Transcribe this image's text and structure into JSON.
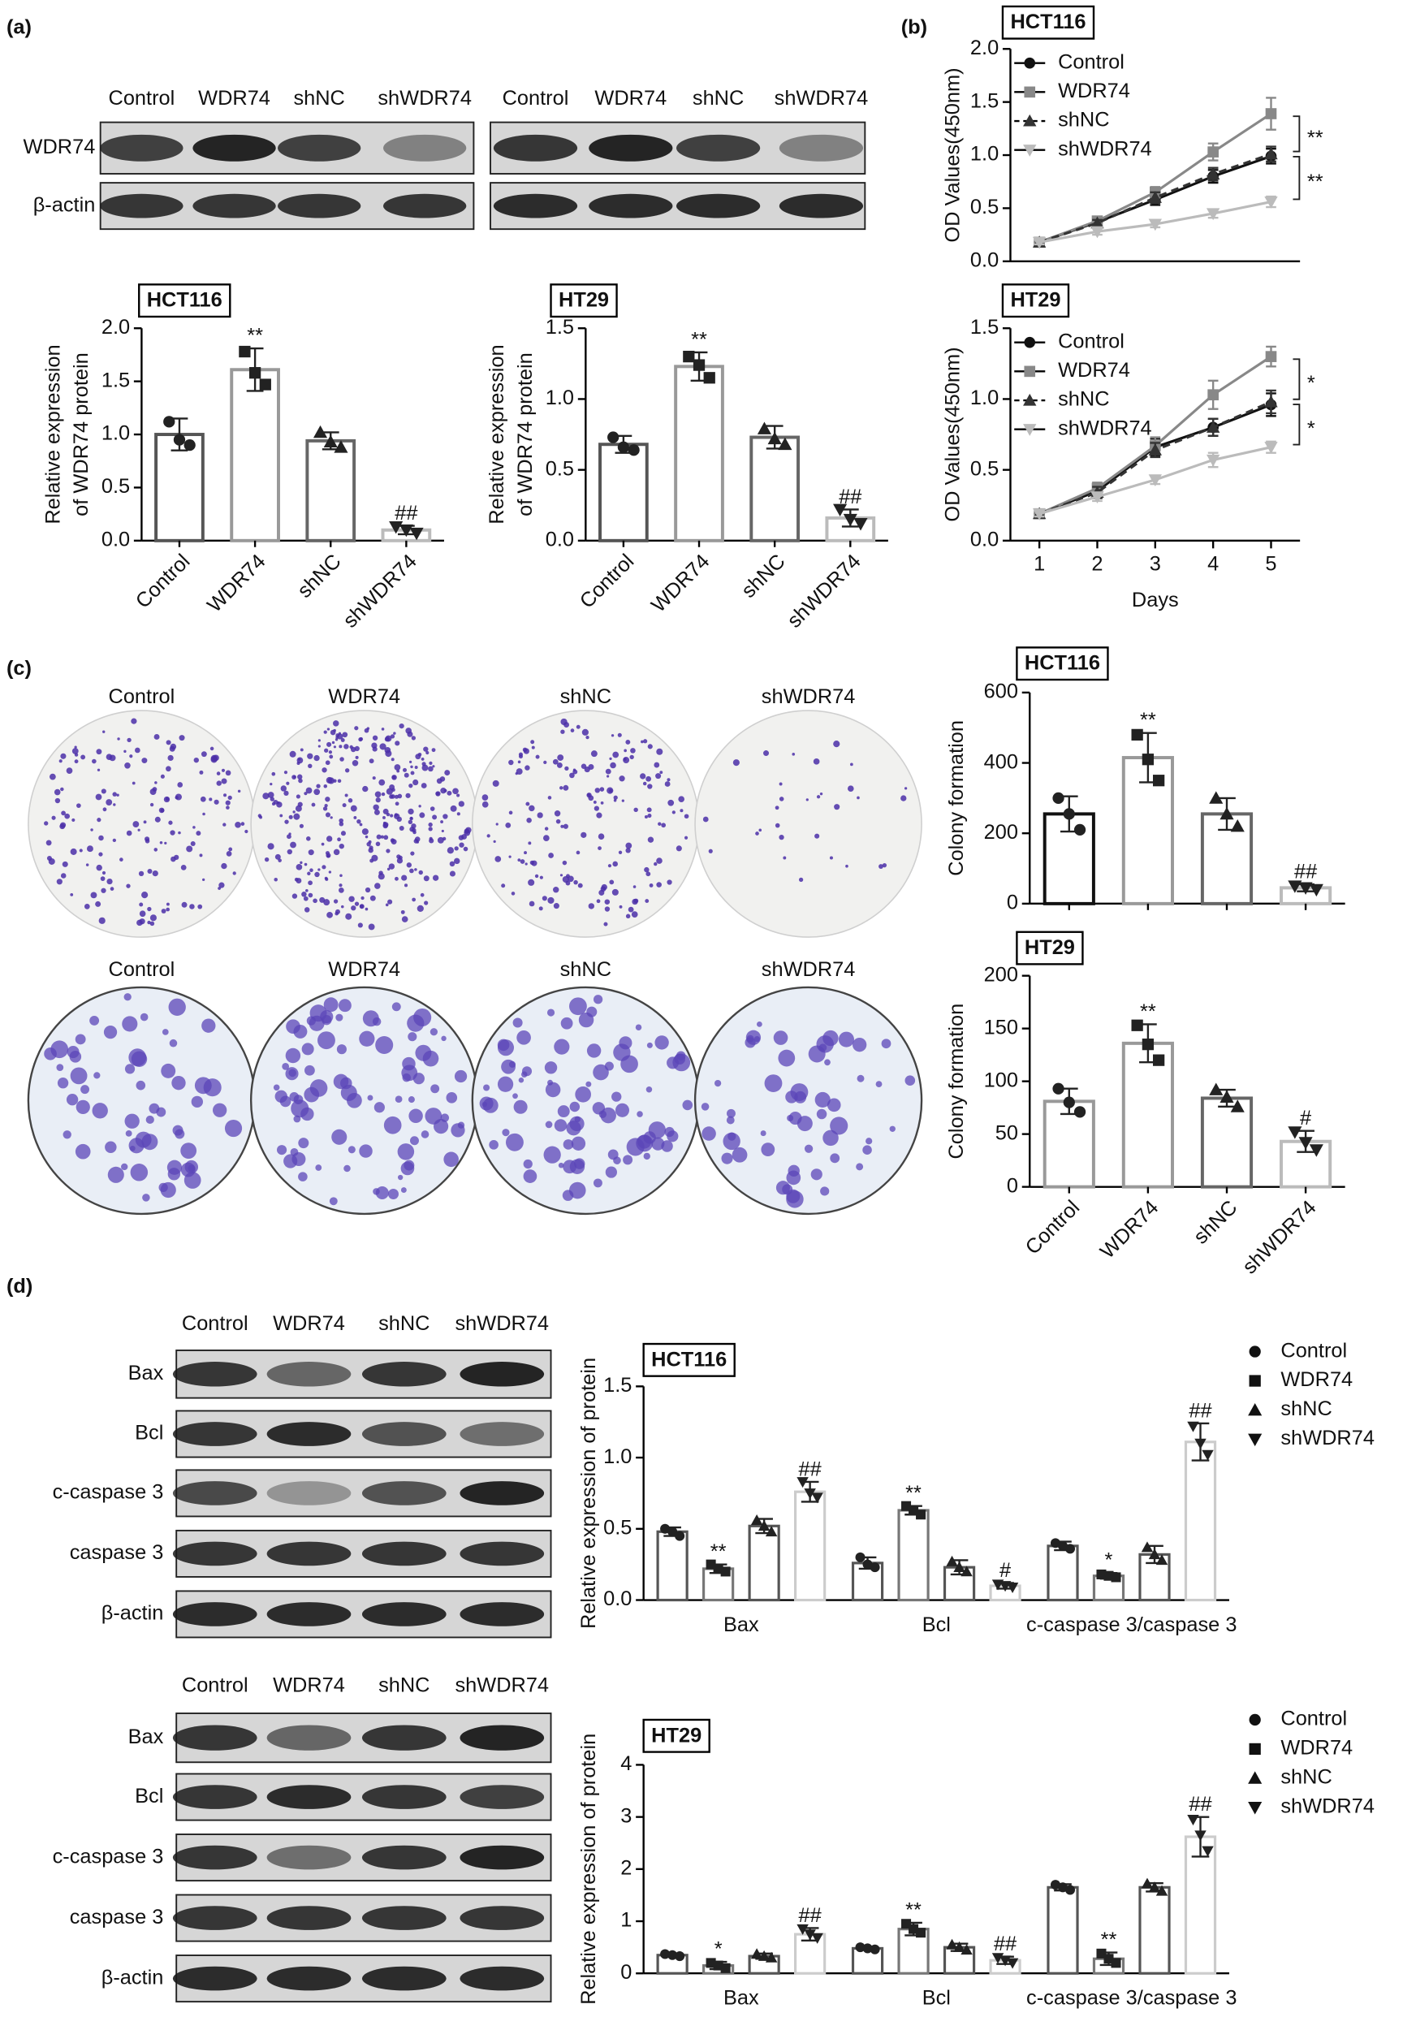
{
  "panels": [
    "(a)",
    "(b)",
    "(c)",
    "(d)"
  ],
  "blots": [
    {
      "lanes": [
        "Control",
        "WDR74",
        "shNC",
        "shWDR74"
      ],
      "rows": [
        "WDR74",
        "β-actin"
      ]
    },
    {
      "lanes": [
        "Control",
        "WDR74",
        "shNC",
        "shWDR74"
      ]
    },
    {
      "lanes": [
        "Control",
        "WDR74",
        "shNC",
        "shWDR74"
      ],
      "rows": [
        "Bax",
        "Bcl",
        "c-caspase 3",
        "caspase 3",
        "β-actin"
      ]
    },
    {
      "lanes": [
        "Control",
        "WDR74",
        "shNC",
        "shWDR74"
      ],
      "rows": [
        "Bax",
        "Bcl",
        "c-caspase 3",
        "caspase 3",
        "β-actin"
      ]
    }
  ],
  "dishes": [
    {
      "labels": [
        "Control",
        "WDR74",
        "shNC",
        "shWDR74"
      ]
    },
    {
      "labels": [
        "Control",
        "WDR74",
        "shNC",
        "shWDR74"
      ]
    }
  ],
  "chart_data": [
    {
      "type": "bar",
      "title": "HCT116",
      "ylabel": [
        "Relative expression",
        "of WDR74 protein"
      ],
      "categories": [
        "Control",
        "WDR74",
        "shNC",
        "shWDR74"
      ],
      "values": [
        1.0,
        1.61,
        0.94,
        0.1
      ],
      "errors": [
        0.15,
        0.2,
        0.08,
        0.04
      ],
      "points": [
        [
          1.12,
          0.95,
          0.9
        ],
        [
          1.78,
          1.58,
          1.47
        ],
        [
          1.02,
          0.93,
          0.88
        ],
        [
          0.13,
          0.1,
          0.07
        ]
      ],
      "colors": [
        "#555555",
        "#999999",
        "#666666",
        "#bbbbbb"
      ],
      "markers": [
        "circle",
        "square",
        "triangle-up",
        "triangle-down"
      ],
      "ylim": [
        0,
        2
      ],
      "yticks": [
        {
          "value": 0,
          "label": "0.0"
        },
        0.5,
        {
          "value": 1,
          "label": "1.0"
        },
        1.5,
        {
          "value": 2,
          "label": "2.0"
        }
      ],
      "annotations": [
        {
          "index": 1,
          "text": "**"
        },
        {
          "index": 3,
          "text": "##"
        }
      ],
      "grid": false
    },
    {
      "type": "bar",
      "title": "HT29",
      "ylabel": [
        "Relative expression",
        "of WDR74 protein"
      ],
      "categories": [
        "Control",
        "WDR74",
        "shNC",
        "shWDR74"
      ],
      "values": [
        0.68,
        1.23,
        0.73,
        0.16
      ],
      "errors": [
        0.06,
        0.1,
        0.08,
        0.06
      ],
      "points": [
        [
          0.73,
          0.66,
          0.64
        ],
        [
          1.3,
          1.24,
          1.15
        ],
        [
          0.79,
          0.72,
          0.68
        ],
        [
          0.22,
          0.15,
          0.12
        ]
      ],
      "colors": [
        "#555555",
        "#999999",
        "#666666",
        "#bbbbbb"
      ],
      "markers": [
        "circle",
        "square",
        "triangle-up",
        "triangle-down"
      ],
      "ylim": [
        0,
        1.5
      ],
      "yticks": [
        {
          "value": 0,
          "label": "0.0"
        },
        0.5,
        {
          "value": 1,
          "label": "1.0"
        },
        1.5
      ],
      "annotations": [
        {
          "index": 1,
          "text": "**"
        },
        {
          "index": 3,
          "text": "##"
        }
      ],
      "grid": false
    },
    {
      "type": "line",
      "title": "HCT116",
      "ylabel": "OD Values(450nm)",
      "legend": "upper left",
      "x": [
        1,
        2,
        3,
        4,
        5
      ],
      "xlim": [
        0.5,
        5.5
      ],
      "ylim": [
        0,
        2
      ],
      "yticks": [
        {
          "value": 0,
          "label": "0.0"
        },
        0.5,
        {
          "value": 1,
          "label": "1.0"
        },
        1.5,
        {
          "value": 2,
          "label": "2.0"
        }
      ],
      "series": [
        {
          "name": "Control",
          "color": "#111111",
          "marker": "circle",
          "linestyle": "solid",
          "values": [
            0.18,
            0.37,
            0.58,
            0.8,
            0.99
          ],
          "errors": [
            0.02,
            0.03,
            0.05,
            0.06,
            0.07
          ]
        },
        {
          "name": "WDR74",
          "color": "#888888",
          "marker": "square",
          "linestyle": "solid",
          "values": [
            0.18,
            0.38,
            0.65,
            1.03,
            1.39
          ],
          "errors": [
            0.02,
            0.03,
            0.05,
            0.08,
            0.15
          ]
        },
        {
          "name": "shNC",
          "color": "#333333",
          "marker": "triangle-up",
          "linestyle": "dashed",
          "values": [
            0.18,
            0.36,
            0.6,
            0.82,
            1.01
          ],
          "errors": [
            0.02,
            0.03,
            0.05,
            0.06,
            0.07
          ]
        },
        {
          "name": "shWDR74",
          "color": "#bbbbbb",
          "marker": "triangle-down",
          "linestyle": "solid",
          "values": [
            0.18,
            0.28,
            0.35,
            0.45,
            0.56
          ],
          "errors": [
            0.02,
            0.03,
            0.03,
            0.04,
            0.05
          ]
        }
      ],
      "brackets": [
        {
          "series": [
            1,
            2
          ],
          "text": "**"
        },
        {
          "series": [
            2,
            3
          ],
          "text": "**"
        }
      ],
      "grid": false
    },
    {
      "type": "line",
      "title": "HT29",
      "ylabel": "OD Values(450nm)",
      "xlabel": "Days",
      "legend": "upper left",
      "x": [
        1,
        2,
        3,
        4,
        5
      ],
      "xlim": [
        0.5,
        5.5
      ],
      "xticks": [
        1,
        2,
        3,
        4,
        5
      ],
      "ylim": [
        0,
        1.5
      ],
      "yticks": [
        {
          "value": 0,
          "label": "0.0"
        },
        0.5,
        {
          "value": 1,
          "label": "1.0"
        },
        1.5
      ],
      "series": [
        {
          "name": "Control",
          "color": "#111111",
          "marker": "circle",
          "linestyle": "solid",
          "values": [
            0.19,
            0.35,
            0.66,
            0.8,
            0.96
          ],
          "errors": [
            0.02,
            0.04,
            0.06,
            0.06,
            0.08
          ]
        },
        {
          "name": "WDR74",
          "color": "#888888",
          "marker": "square",
          "linestyle": "solid",
          "values": [
            0.19,
            0.37,
            0.67,
            1.03,
            1.3
          ],
          "errors": [
            0.02,
            0.04,
            0.06,
            0.1,
            0.07
          ]
        },
        {
          "name": "shNC",
          "color": "#333333",
          "marker": "triangle-up",
          "linestyle": "dashed",
          "values": [
            0.19,
            0.34,
            0.64,
            0.8,
            0.98
          ],
          "errors": [
            0.02,
            0.04,
            0.05,
            0.06,
            0.08
          ]
        },
        {
          "name": "shWDR74",
          "color": "#bbbbbb",
          "marker": "triangle-down",
          "linestyle": "solid",
          "values": [
            0.19,
            0.31,
            0.43,
            0.57,
            0.66
          ],
          "errors": [
            0.02,
            0.03,
            0.03,
            0.05,
            0.04
          ]
        }
      ],
      "brackets": [
        {
          "series": [
            1,
            2
          ],
          "text": "*"
        },
        {
          "series": [
            2,
            3
          ],
          "text": "*"
        }
      ],
      "grid": false
    },
    {
      "type": "bar",
      "title": "HCT116",
      "ylabel": "Colony formation",
      "values": [
        255,
        415,
        255,
        45
      ],
      "errors": [
        50,
        70,
        45,
        10
      ],
      "points": [
        [
          300,
          255,
          210
        ],
        [
          480,
          410,
          350
        ],
        [
          300,
          255,
          220
        ],
        [
          50,
          45,
          40
        ]
      ],
      "colors": [
        "#111111",
        "#999999",
        "#666666",
        "#bbbbbb"
      ],
      "markers": [
        "circle",
        "square",
        "triangle-up",
        "triangle-down"
      ],
      "ylim": [
        0,
        600
      ],
      "yticks": [
        0,
        200,
        400,
        600
      ],
      "annotations": [
        {
          "index": 1,
          "text": "**"
        },
        {
          "index": 3,
          "text": "##"
        }
      ],
      "grid": false
    },
    {
      "type": "bar",
      "title": "HT29",
      "ylabel": "Colony formation",
      "categories": [
        "Control",
        "WDR74",
        "shNC",
        "shWDR74"
      ],
      "values": [
        81,
        136,
        84,
        43
      ],
      "errors": [
        12,
        18,
        8,
        10
      ],
      "points": [
        [
          93,
          80,
          71
        ],
        [
          153,
          135,
          120
        ],
        [
          92,
          85,
          76
        ],
        [
          52,
          42,
          35
        ]
      ],
      "colors": [
        "#999999",
        "#999999",
        "#666666",
        "#bbbbbb"
      ],
      "markers": [
        "circle",
        "square",
        "triangle-up",
        "triangle-down"
      ],
      "ylim": [
        0,
        200
      ],
      "yticks": [
        0,
        50,
        100,
        150,
        200
      ],
      "annotations": [
        {
          "index": 1,
          "text": "**"
        },
        {
          "index": 3,
          "text": "#"
        }
      ],
      "grid": false
    },
    {
      "type": "bar",
      "title": "HCT116",
      "ylabel": "Relative expression of protein",
      "legend": "right",
      "categories": [
        "Bax",
        "Bcl",
        "c-caspase 3/caspase 3"
      ],
      "ylim": [
        0,
        1.5
      ],
      "yticks": [
        {
          "value": 0,
          "label": "0.0"
        },
        0.5,
        {
          "value": 1,
          "label": "1.0"
        },
        1.5
      ],
      "series": [
        {
          "name": "Control",
          "color": "#555555",
          "marker": "circle",
          "values": [
            0.48,
            0.26,
            0.38
          ],
          "errors": [
            0.03,
            0.04,
            0.03
          ],
          "points": [
            [
              0.5,
              0.48,
              0.45
            ],
            [
              0.3,
              0.25,
              0.23
            ],
            [
              0.4,
              0.38,
              0.36
            ]
          ]
        },
        {
          "name": "WDR74",
          "color": "#777777",
          "marker": "square",
          "values": [
            0.22,
            0.63,
            0.17
          ],
          "errors": [
            0.03,
            0.03,
            0.02
          ],
          "points": [
            [
              0.25,
              0.22,
              0.2
            ],
            [
              0.66,
              0.63,
              0.6
            ],
            [
              0.18,
              0.17,
              0.16
            ]
          ]
        },
        {
          "name": "shNC",
          "color": "#555555",
          "marker": "triangle-up",
          "values": [
            0.52,
            0.23,
            0.32
          ],
          "errors": [
            0.05,
            0.05,
            0.06
          ],
          "points": [
            [
              0.56,
              0.52,
              0.48
            ],
            [
              0.27,
              0.23,
              0.2
            ],
            [
              0.37,
              0.32,
              0.28
            ]
          ]
        },
        {
          "name": "shWDR74",
          "color": "#cccccc",
          "marker": "triangle-down",
          "values": [
            0.76,
            0.1,
            1.11
          ],
          "errors": [
            0.07,
            0.02,
            0.13
          ],
          "points": [
            [
              0.83,
              0.75,
              0.72
            ],
            [
              0.11,
              0.1,
              0.09
            ],
            [
              1.22,
              1.1,
              1.02
            ]
          ]
        }
      ],
      "annotations": [
        {
          "series": 1,
          "index": 0,
          "text": "**"
        },
        {
          "series": 3,
          "index": 0,
          "text": "##"
        },
        {
          "series": 1,
          "index": 1,
          "text": "**"
        },
        {
          "series": 3,
          "index": 1,
          "text": "#"
        },
        {
          "series": 1,
          "index": 2,
          "text": "*"
        },
        {
          "series": 3,
          "index": 2,
          "text": "##"
        }
      ],
      "grid": false
    },
    {
      "type": "bar",
      "title": "HT29",
      "ylabel": "Relative expression of protein",
      "legend": "right",
      "categories": [
        "Bax",
        "Bcl",
        "c-caspase 3/caspase 3"
      ],
      "ylim": [
        0,
        4
      ],
      "yticks": [
        0,
        1,
        2,
        3,
        4
      ],
      "series": [
        {
          "name": "Control",
          "color": "#555555",
          "marker": "circle",
          "values": [
            0.35,
            0.48,
            1.65
          ],
          "errors": [
            0.03,
            0.03,
            0.06
          ],
          "points": [
            [
              0.37,
              0.35,
              0.33
            ],
            [
              0.5,
              0.48,
              0.46
            ],
            [
              1.7,
              1.65,
              1.6
            ]
          ]
        },
        {
          "name": "WDR74",
          "color": "#777777",
          "marker": "square",
          "values": [
            0.15,
            0.85,
            0.28
          ],
          "errors": [
            0.07,
            0.12,
            0.12
          ],
          "points": [
            [
              0.2,
              0.15,
              0.1
            ],
            [
              0.95,
              0.85,
              0.78
            ],
            [
              0.38,
              0.28,
              0.2
            ]
          ]
        },
        {
          "name": "shNC",
          "color": "#555555",
          "marker": "triangle-up",
          "values": [
            0.33,
            0.5,
            1.65
          ],
          "errors": [
            0.05,
            0.07,
            0.08
          ],
          "points": [
            [
              0.37,
              0.33,
              0.3
            ],
            [
              0.55,
              0.5,
              0.45
            ],
            [
              1.72,
              1.65,
              1.58
            ]
          ]
        },
        {
          "name": "shWDR74",
          "color": "#cccccc",
          "marker": "triangle-down",
          "values": [
            0.75,
            0.25,
            2.62
          ],
          "errors": [
            0.12,
            0.07,
            0.38
          ],
          "points": [
            [
              0.85,
              0.75,
              0.68
            ],
            [
              0.3,
              0.25,
              0.2
            ],
            [
              2.95,
              2.65,
              2.35
            ]
          ]
        }
      ],
      "annotations": [
        {
          "series": 1,
          "index": 0,
          "text": "*"
        },
        {
          "series": 3,
          "index": 0,
          "text": "##"
        },
        {
          "series": 1,
          "index": 1,
          "text": "**"
        },
        {
          "series": 3,
          "index": 1,
          "text": "##"
        },
        {
          "series": 1,
          "index": 2,
          "text": "**"
        },
        {
          "series": 3,
          "index": 2,
          "text": "##"
        }
      ],
      "grid": false
    }
  ]
}
